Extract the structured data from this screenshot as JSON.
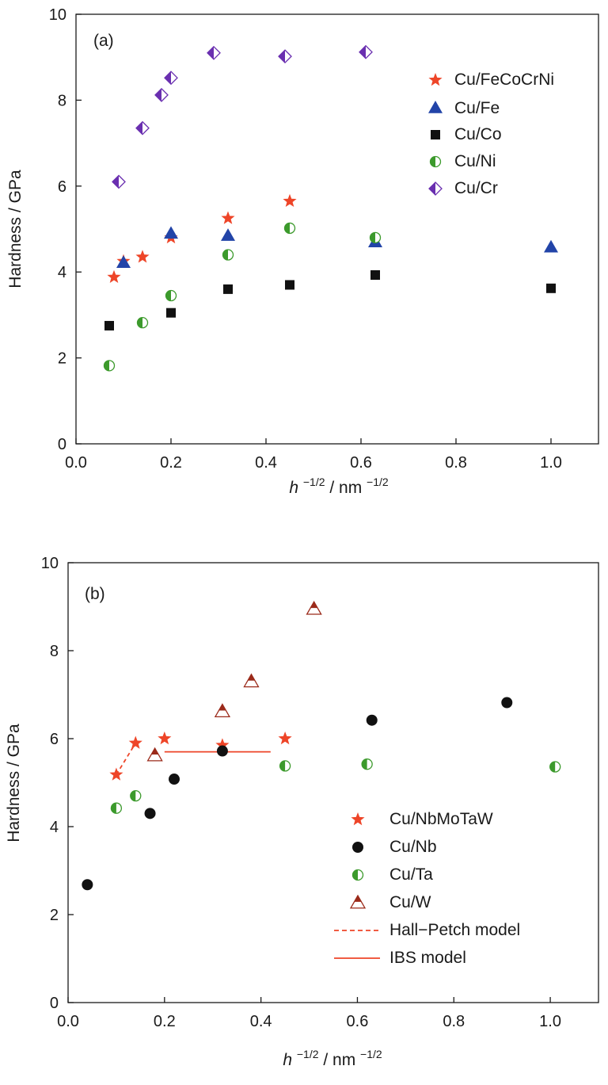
{
  "chart_data": [
    {
      "type": "scatter",
      "panel_label": "(a)",
      "xlabel_base": "h",
      "xlabel_sup": "−1/2",
      "xlabel_mid": " / nm",
      "xlabel_unit_sup": "−1/2",
      "ylabel": "Hardness / GPa",
      "xlim": [
        0.0,
        1.1
      ],
      "ylim": [
        0,
        10
      ],
      "xticks": [
        "0.0",
        "0.2",
        "0.4",
        "0.6",
        "0.8",
        "1.0"
      ],
      "yticks": [
        "0",
        "2",
        "4",
        "6",
        "8",
        "10"
      ],
      "grid": false,
      "legend_position": "top-right",
      "series": [
        {
          "name": "Cu/FeCoCrNi",
          "marker": "star",
          "color": "#ee4528",
          "points": [
            [
              0.08,
              3.88
            ],
            [
              0.1,
              4.25
            ],
            [
              0.14,
              4.35
            ],
            [
              0.2,
              4.8
            ],
            [
              0.32,
              5.25
            ],
            [
              0.45,
              5.65
            ]
          ]
        },
        {
          "name": "Cu/Fe",
          "marker": "triangle",
          "color": "#2244a8",
          "points": [
            [
              0.1,
              4.22
            ],
            [
              0.2,
              4.9
            ],
            [
              0.32,
              4.85
            ],
            [
              0.63,
              4.7
            ],
            [
              1.0,
              4.58
            ]
          ]
        },
        {
          "name": "Cu/Co",
          "marker": "square",
          "color": "#111111",
          "points": [
            [
              0.07,
              2.75
            ],
            [
              0.2,
              3.05
            ],
            [
              0.32,
              3.6
            ],
            [
              0.45,
              3.7
            ],
            [
              0.63,
              3.93
            ],
            [
              1.0,
              3.62
            ]
          ]
        },
        {
          "name": "Cu/Ni",
          "marker": "half-circle",
          "color": "#3c9a2c",
          "points": [
            [
              0.07,
              1.82
            ],
            [
              0.14,
              2.82
            ],
            [
              0.2,
              3.45
            ],
            [
              0.32,
              4.4
            ],
            [
              0.45,
              5.02
            ],
            [
              0.63,
              4.8
            ]
          ]
        },
        {
          "name": "Cu/Cr",
          "marker": "half-diamond",
          "color": "#6a2fb0",
          "points": [
            [
              0.09,
              6.1
            ],
            [
              0.14,
              7.35
            ],
            [
              0.18,
              8.12
            ],
            [
              0.2,
              8.52
            ],
            [
              0.29,
              9.1
            ],
            [
              0.44,
              9.02
            ],
            [
              0.61,
              9.12
            ]
          ]
        }
      ]
    },
    {
      "type": "scatter",
      "panel_label": "(b)",
      "xlabel_base": "h",
      "xlabel_sup": "−1/2",
      "xlabel_mid": " / nm",
      "xlabel_unit_sup": "−1/2",
      "ylabel": "Hardness / GPa",
      "xlim": [
        0.0,
        1.1
      ],
      "ylim": [
        0,
        10
      ],
      "xticks": [
        "0.0",
        "0.2",
        "0.4",
        "0.6",
        "0.8",
        "1.0"
      ],
      "yticks": [
        "0",
        "2",
        "4",
        "6",
        "8",
        "10"
      ],
      "grid": false,
      "legend_position": "bottom-right",
      "series": [
        {
          "name": "Cu/NbMoTaW",
          "marker": "star",
          "color": "#ee4528",
          "points": [
            [
              0.1,
              5.18
            ],
            [
              0.14,
              5.9
            ],
            [
              0.2,
              6.0
            ],
            [
              0.32,
              5.85
            ],
            [
              0.45,
              6.0
            ]
          ]
        },
        {
          "name": "Cu/Nb",
          "marker": "circle",
          "color": "#111111",
          "points": [
            [
              0.04,
              2.68
            ],
            [
              0.17,
              4.3
            ],
            [
              0.22,
              5.08
            ],
            [
              0.32,
              5.72
            ],
            [
              0.63,
              6.42
            ],
            [
              0.91,
              6.82
            ]
          ]
        },
        {
          "name": "Cu/Ta",
          "marker": "half-circle",
          "color": "#3c9a2c",
          "points": [
            [
              0.1,
              4.42
            ],
            [
              0.14,
              4.7
            ],
            [
              0.45,
              5.38
            ],
            [
              0.62,
              5.42
            ],
            [
              1.01,
              5.36
            ]
          ]
        },
        {
          "name": "Cu/W",
          "marker": "half-triangle",
          "color": "#9b2a1a",
          "points": [
            [
              0.18,
              5.62
            ],
            [
              0.32,
              6.62
            ],
            [
              0.38,
              7.3
            ],
            [
              0.51,
              8.95
            ]
          ]
        }
      ],
      "lines": [
        {
          "name": "Hall−Petch model",
          "style": "dashed",
          "color": "#ee4528",
          "points": [
            [
              0.1,
              5.18
            ],
            [
              0.14,
              5.9
            ]
          ]
        },
        {
          "name": "IBS model",
          "style": "solid",
          "color": "#ee4528",
          "points": [
            [
              0.2,
              5.7
            ],
            [
              0.42,
              5.7
            ]
          ]
        }
      ]
    }
  ]
}
